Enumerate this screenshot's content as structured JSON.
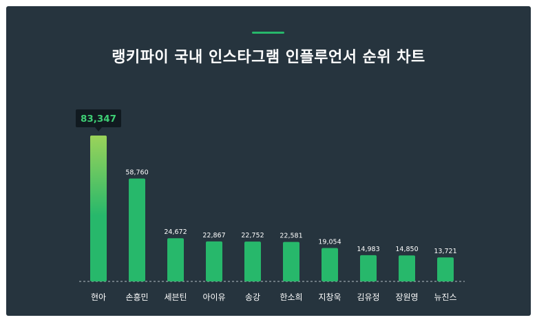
{
  "header": {
    "title": "랭키파이 국내 인스타그램 인플루언서 순위 차트"
  },
  "colors": {
    "background": "#26343e",
    "bar": "#27b86b",
    "bar_top_highlight": "#9bd35a",
    "accent": "#27b86b",
    "tooltip_bg": "#111a20",
    "tooltip_text": "#3ecf75",
    "label_text": "#ffffff"
  },
  "chart_data": {
    "type": "bar",
    "title": "랭키파이 국내 인스타그램 인플루언서 순위 차트",
    "xlabel": "",
    "ylabel": "",
    "categories": [
      "현아",
      "손흥민",
      "세븐틴",
      "아이유",
      "송강",
      "한소희",
      "지창욱",
      "김유정",
      "장원영",
      "뉴진스"
    ],
    "values": [
      83347,
      58760,
      24672,
      22867,
      22752,
      22581,
      19054,
      14983,
      14850,
      13721
    ],
    "data_labels": [
      "83,347",
      "58,760",
      "24,672",
      "22,867",
      "22,752",
      "22,581",
      "19,054",
      "14,983",
      "14,850",
      "13,721"
    ],
    "ylim": [
      0,
      83347
    ],
    "grid": false,
    "legend": "none",
    "highlighted_index": 0
  }
}
